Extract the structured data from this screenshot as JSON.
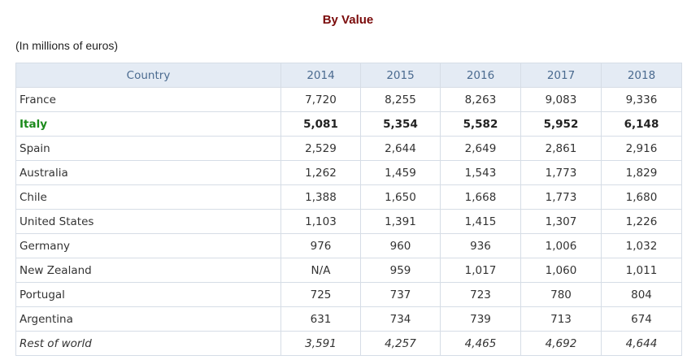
{
  "title": "By Value",
  "unit": "(In millions of euros)",
  "headers": [
    "Country",
    "2014",
    "2015",
    "2016",
    "2017",
    "2018"
  ],
  "rows": [
    [
      "France",
      "7,720",
      "8,255",
      "8,263",
      "9,083",
      "9,336"
    ],
    [
      "Italy",
      "5,081",
      "5,354",
      "5,582",
      "5,952",
      "6,148"
    ],
    [
      "Spain",
      "2,529",
      "2,644",
      "2,649",
      "2,861",
      "2,916"
    ],
    [
      "Australia",
      "1,262",
      "1,459",
      "1,543",
      "1,773",
      "1,829"
    ],
    [
      "Chile",
      "1,388",
      "1,650",
      "1,668",
      "1,773",
      "1,680"
    ],
    [
      "United States",
      "1,103",
      "1,391",
      "1,415",
      "1,307",
      "1,226"
    ],
    [
      "Germany",
      "976",
      "960",
      "936",
      "1,006",
      "1,032"
    ],
    [
      "New Zealand",
      "N/A",
      "959",
      "1,017",
      "1,060",
      "1,011"
    ],
    [
      "Portugal",
      "725",
      "737",
      "723",
      "780",
      "804"
    ],
    [
      "Argentina",
      "631",
      "734",
      "739",
      "713",
      "674"
    ],
    [
      "Rest of world",
      "3,591",
      "4,257",
      "4,465",
      "4,692",
      "4,644"
    ]
  ]
}
